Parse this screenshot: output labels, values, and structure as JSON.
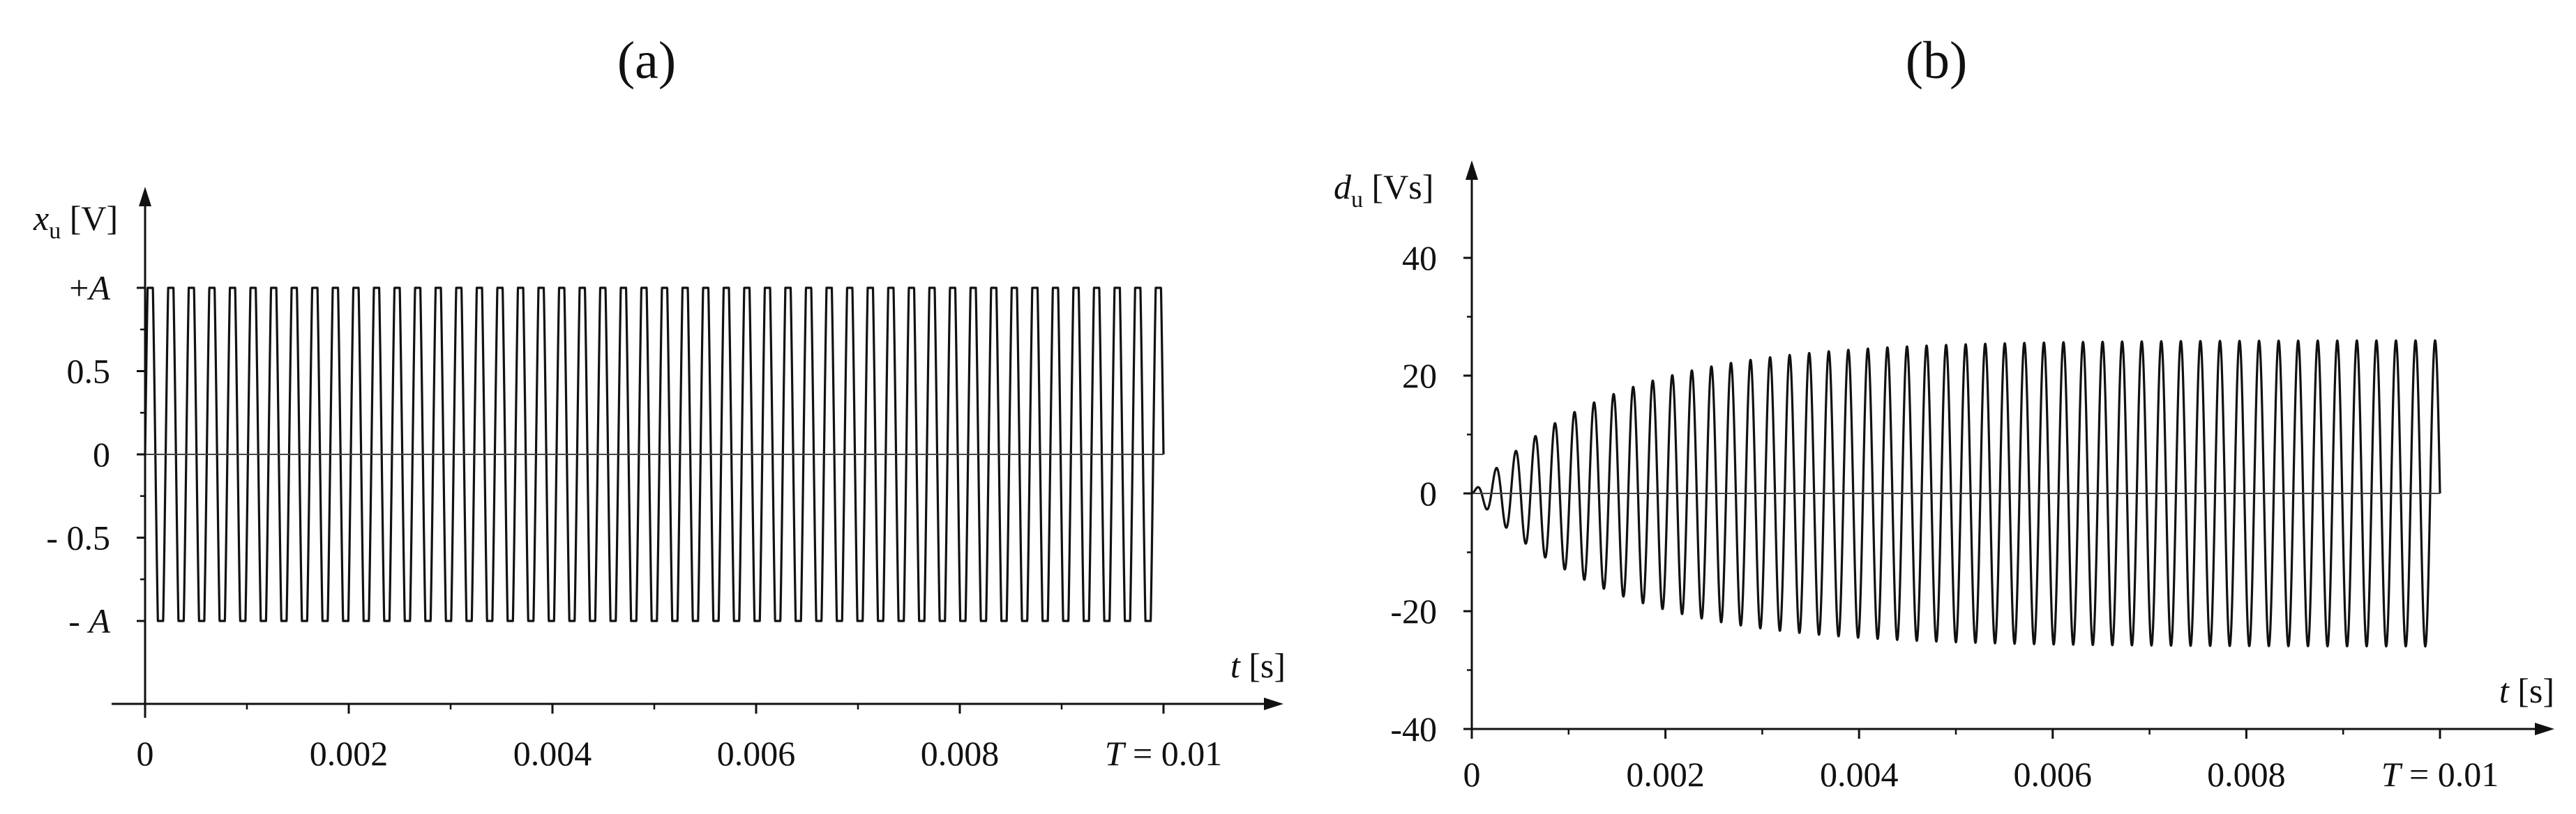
{
  "chart_data": [
    {
      "panel_label": "(a)",
      "type": "line",
      "xlabel": {
        "var": "t",
        "unit": " [s]"
      },
      "ylabel": {
        "var": "x",
        "sub": "u",
        "unit": " [V]"
      },
      "xlim": [
        0,
        0.01
      ],
      "ylim": [
        -1,
        1
      ],
      "x_ticks": [
        {
          "value": 0,
          "label": "0"
        },
        {
          "value": 0.002,
          "label": "0.002"
        },
        {
          "value": 0.004,
          "label": "0.004"
        },
        {
          "value": 0.006,
          "label": "0.006"
        },
        {
          "value": 0.008,
          "label": "0.008"
        },
        {
          "value": 0.01,
          "label": "T = 0.01"
        }
      ],
      "y_ticks": [
        {
          "value": 1,
          "label": "+A"
        },
        {
          "value": 0.5,
          "label": "0.5"
        },
        {
          "value": 0,
          "label": "0"
        },
        {
          "value": -0.5,
          "label": "- 0.5"
        },
        {
          "value": -1,
          "label": "- A"
        }
      ],
      "grid": false,
      "series": [
        {
          "kind": "clipped_sine",
          "frequency": 4950,
          "amplitude": 1.45,
          "clip": 1,
          "stroke": "#111111"
        }
      ]
    },
    {
      "panel_label": "(b)",
      "type": "line",
      "xlabel": {
        "var": "t",
        "unit": " [s]"
      },
      "ylabel": {
        "var": "d",
        "sub": "u",
        "unit": " [Vs]"
      },
      "xlim": [
        0,
        0.01
      ],
      "ylim": [
        -40,
        40
      ],
      "x_ticks": [
        {
          "value": 0,
          "label": "0"
        },
        {
          "value": 0.002,
          "label": "0.002"
        },
        {
          "value": 0.004,
          "label": "0.004"
        },
        {
          "value": 0.006,
          "label": "0.006"
        },
        {
          "value": 0.008,
          "label": "0.008"
        },
        {
          "value": 0.01,
          "label": "T = 0.01"
        }
      ],
      "y_ticks": [
        {
          "value": 40,
          "label": "40"
        },
        {
          "value": 20,
          "label": "20"
        },
        {
          "value": 0,
          "label": "0"
        },
        {
          "value": -20,
          "label": "-20"
        },
        {
          "value": -40,
          "label": "-40"
        }
      ],
      "grid": false,
      "series": [
        {
          "kind": "growing_oscillation",
          "frequency": 4950,
          "final_amplitude": 26,
          "time_constant": 0.0014,
          "stroke": "#111111"
        }
      ]
    }
  ]
}
